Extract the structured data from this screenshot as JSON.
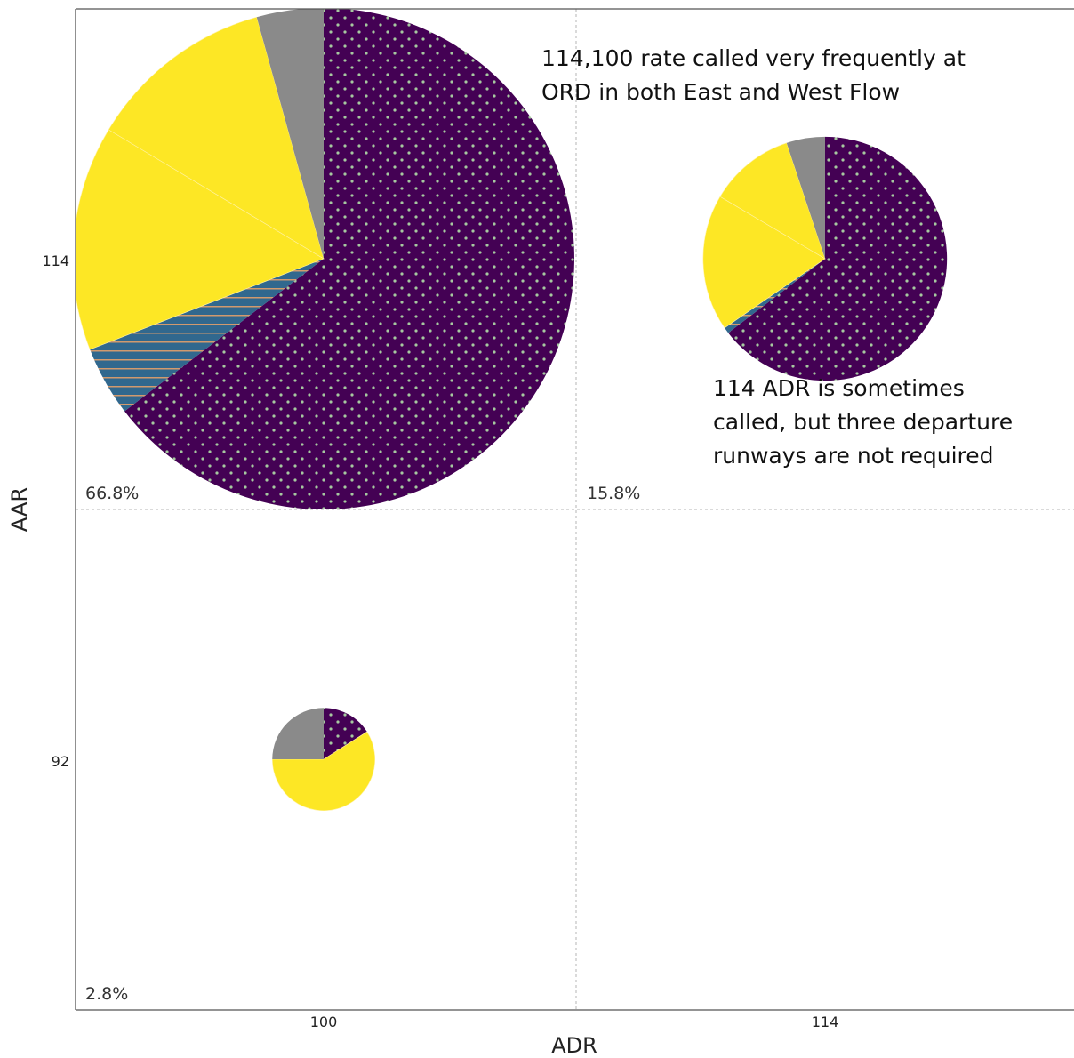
{
  "chart_data": {
    "type": "scatter",
    "title": "",
    "xlabel": "ADR",
    "ylabel": "AAR",
    "x_ticks": [
      "100",
      "114"
    ],
    "y_ticks": [
      "114",
      "92"
    ],
    "grid": true,
    "colors": {
      "dark_purple": "#440154",
      "teal": "#31688e",
      "yellow": "#fde725",
      "gray": "#8a8a8a",
      "dot": "#a6c9a0",
      "stripe": "#d29a6e"
    },
    "pies": [
      {
        "adr": "100",
        "aar": "114",
        "share_label": "66.8%",
        "share": 66.8,
        "slices": [
          {
            "color": "dark_purple",
            "pattern": "dots",
            "value": 64.6
          },
          {
            "color": "teal",
            "pattern": "stripes",
            "value": 4.5
          },
          {
            "color": "yellow",
            "pattern": "none",
            "value": 14.5
          },
          {
            "color": "yellow",
            "pattern": "none",
            "value": 12.1
          },
          {
            "color": "gray",
            "pattern": "none",
            "value": 4.3
          }
        ]
      },
      {
        "adr": "114",
        "aar": "114",
        "share_label": "15.8%",
        "share": 15.8,
        "slices": [
          {
            "color": "dark_purple",
            "pattern": "dots",
            "value": 64.6
          },
          {
            "color": "teal",
            "pattern": "stripes",
            "value": 0.8
          },
          {
            "color": "yellow",
            "pattern": "none",
            "value": 18.1
          },
          {
            "color": "yellow",
            "pattern": "none",
            "value": 11.4
          },
          {
            "color": "gray",
            "pattern": "none",
            "value": 5.1
          }
        ]
      },
      {
        "adr": "100",
        "aar": "92",
        "share_label": "2.8%",
        "share": 2.8,
        "slices": [
          {
            "color": "dark_purple",
            "pattern": "dots",
            "value": 16.0
          },
          {
            "color": "yellow",
            "pattern": "none",
            "value": 59.0
          },
          {
            "color": "gray",
            "pattern": "none",
            "value": 25.0
          }
        ]
      }
    ],
    "annotations": [
      {
        "lines": [
          "114,100 rate called very frequently at",
          "ORD in both East and West Flow"
        ]
      },
      {
        "lines": [
          "114 ADR is sometimes",
          "called, but three departure",
          "runways are not required"
        ]
      }
    ]
  }
}
